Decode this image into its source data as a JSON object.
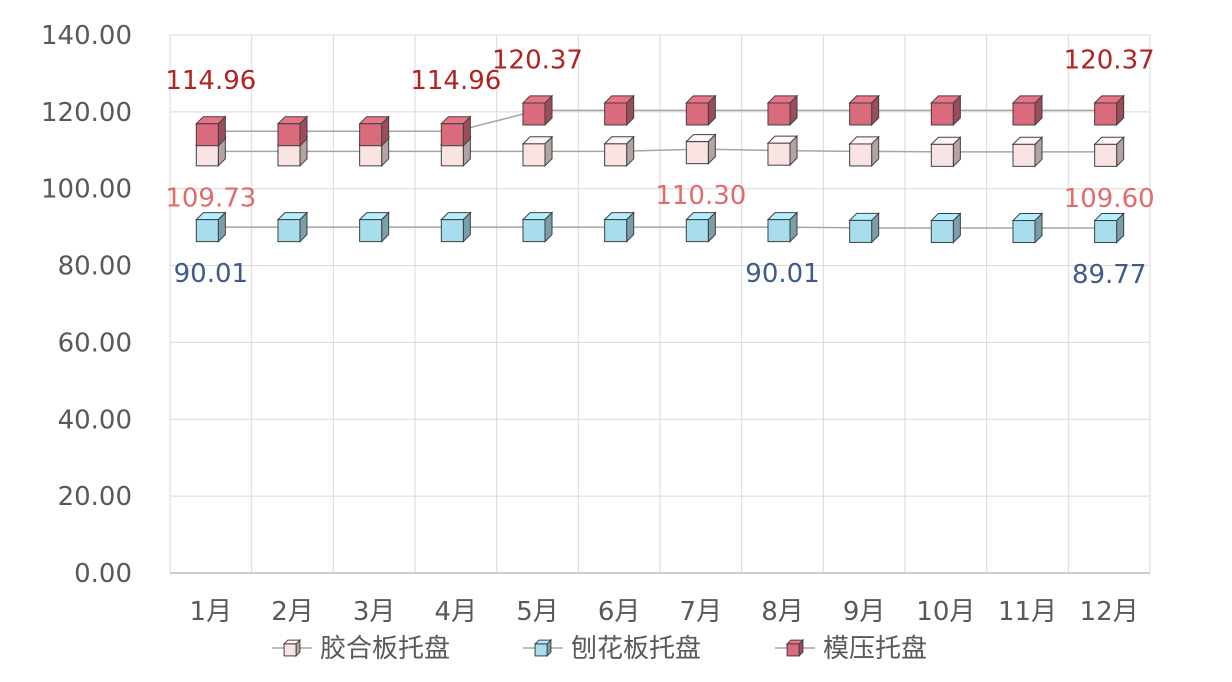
{
  "chart_data": {
    "type": "line",
    "categories": [
      "1月",
      "2月",
      "3月",
      "4月",
      "5月",
      "6月",
      "7月",
      "8月",
      "9月",
      "10月",
      "11月",
      "12月"
    ],
    "ylim": [
      0,
      140
    ],
    "yticks": [
      "0.00",
      "20.00",
      "40.00",
      "60.00",
      "80.00",
      "100.00",
      "120.00",
      "140.00"
    ],
    "grid": true,
    "legend_position": "bottom",
    "series": [
      {
        "name": "胶合板托盘",
        "values": [
          109.73,
          109.73,
          109.73,
          109.73,
          109.73,
          109.73,
          110.3,
          109.9,
          109.7,
          109.6,
          109.6,
          109.6
        ],
        "color": "#FAE3E3",
        "label_color": "#E06C6C",
        "labels": [
          {
            "index": 0,
            "text": "109.73",
            "placement": "below"
          },
          {
            "index": 6,
            "text": "110.30",
            "placement": "below"
          },
          {
            "index": 11,
            "text": "109.60",
            "placement": "below"
          }
        ]
      },
      {
        "name": "刨花板托盘",
        "values": [
          90.01,
          90.01,
          90.01,
          90.01,
          90.01,
          90.01,
          90.01,
          90.01,
          89.8,
          89.77,
          89.77,
          89.77
        ],
        "color": "#A7DDEC",
        "label_color": "#3F5B8C",
        "labels": [
          {
            "index": 0,
            "text": "90.01",
            "placement": "below"
          },
          {
            "index": 7,
            "text": "90.01",
            "placement": "below"
          },
          {
            "index": 11,
            "text": "89.77",
            "placement": "below"
          }
        ]
      },
      {
        "name": "模压托盘",
        "values": [
          114.96,
          114.96,
          114.96,
          114.96,
          120.37,
          120.37,
          120.37,
          120.37,
          120.37,
          120.37,
          120.37,
          120.37
        ],
        "color": "#D96B7D",
        "label_color": "#B22222",
        "labels": [
          {
            "index": 0,
            "text": "114.96",
            "placement": "above"
          },
          {
            "index": 3,
            "text": "114.96",
            "placement": "above"
          },
          {
            "index": 4,
            "text": "120.37",
            "placement": "above"
          },
          {
            "index": 11,
            "text": "120.37",
            "placement": "above"
          }
        ]
      }
    ]
  }
}
